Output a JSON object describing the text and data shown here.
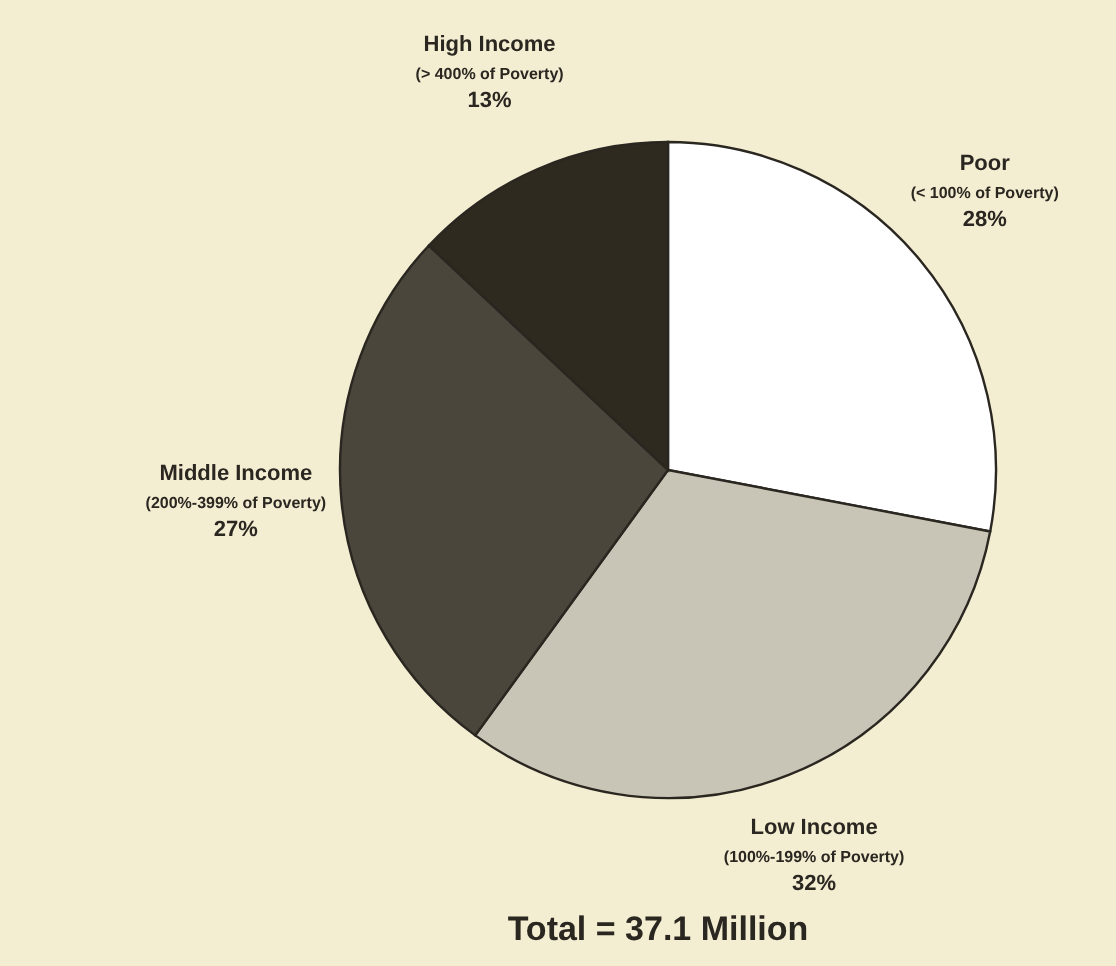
{
  "chart_data": {
    "type": "pie",
    "categories": [
      "Poor\n(< 100% of Poverty)",
      "Low Income\n(100%-199% of Poverty)",
      "Middle Income\n(200%-399% of Poverty)",
      "High Income\n(> 400% of Poverty)"
    ],
    "values": [
      28,
      32,
      27,
      13
    ],
    "colors": [
      "#ffffff",
      "#c9c5b6",
      "#4a463c",
      "#2e2a20"
    ],
    "value_labels": [
      "28%",
      "32%",
      "27%",
      "13%"
    ],
    "legend": false,
    "annotations": [
      "Total = 37.1 Million"
    ]
  }
}
